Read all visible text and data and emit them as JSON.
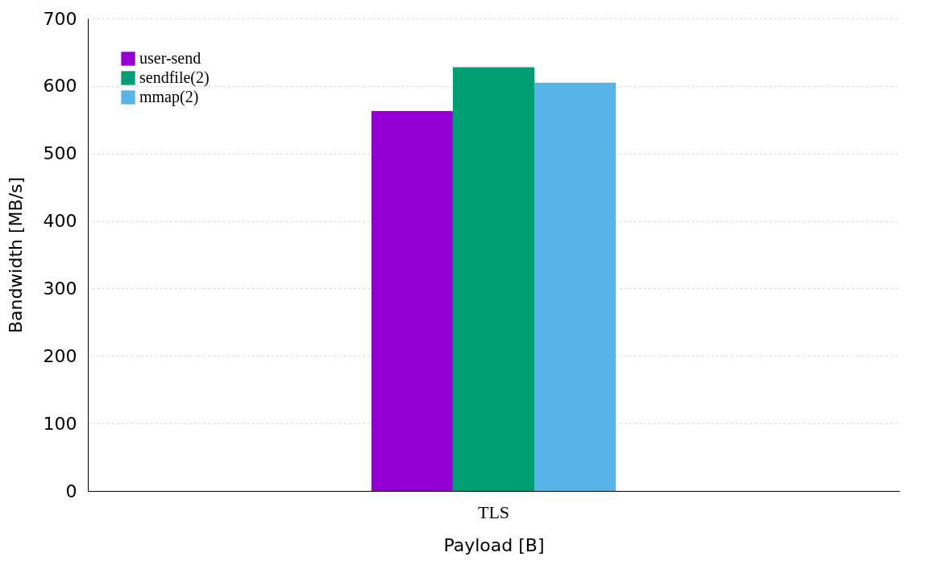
{
  "chart_data": {
    "type": "bar",
    "xlabel": "Payload [B]",
    "ylabel": "Bandwidth [MB/s]",
    "categories": [
      "TLS"
    ],
    "series": [
      {
        "name": "user-send",
        "color": "#9400d3",
        "values": [
          563
        ]
      },
      {
        "name": "sendfile(2)",
        "color": "#009e73",
        "values": [
          628
        ]
      },
      {
        "name": "mmap(2)",
        "color": "#56b4e9",
        "values": [
          605
        ]
      }
    ],
    "ylim": [
      0,
      700
    ],
    "yticks": [
      0,
      100,
      200,
      300,
      400,
      500,
      600,
      700
    ],
    "grid": "y",
    "legend": "top left"
  }
}
